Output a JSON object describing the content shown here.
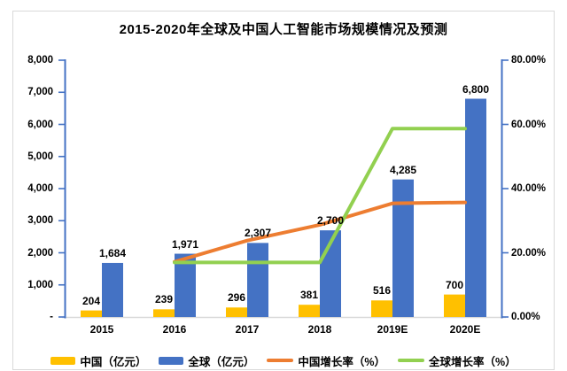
{
  "chart_data": {
    "type": "combo-bar-line",
    "title": "2015-2020年全球及中国人工智能市场规模情况及预测",
    "categories": [
      "2015",
      "2016",
      "2017",
      "2018",
      "2019E",
      "2020E"
    ],
    "series": [
      {
        "name": "中国（亿元）",
        "chart": "bar",
        "axis": "left",
        "color": "#FFC000",
        "values": [
          204,
          239,
          296,
          381,
          516,
          700
        ],
        "labels": [
          "204",
          "239",
          "296",
          "381",
          "516",
          "700"
        ]
      },
      {
        "name": "全球（亿元）",
        "chart": "bar",
        "axis": "left",
        "color": "#4472C4",
        "values": [
          1684,
          1971,
          2307,
          2700,
          4285,
          6800
        ],
        "labels": [
          "1,684",
          "1,971",
          "2,307",
          "2,700",
          "4,285",
          "6,800"
        ]
      },
      {
        "name": "中国增长率（%）",
        "chart": "line",
        "axis": "right",
        "color": "#ED7D31",
        "values": [
          null,
          17.2,
          23.8,
          28.7,
          35.4,
          35.7
        ]
      },
      {
        "name": "全球增长率（%）",
        "chart": "line",
        "axis": "right",
        "color": "#92D050",
        "values": [
          null,
          17.0,
          17.0,
          17.0,
          58.7,
          58.7
        ]
      }
    ],
    "left_axis": {
      "min": 0,
      "max": 8000,
      "step": 1000,
      "tick_labels": [
        "8,000",
        "7,000",
        "6,000",
        "5,000",
        "4,000",
        "3,000",
        "2,000",
        "1,000",
        "-"
      ]
    },
    "right_axis": {
      "min": 0,
      "max": 80,
      "step": 20,
      "tick_labels": [
        "80.00%",
        "60.00%",
        "40.00%",
        "20.00%",
        "0.00%"
      ]
    },
    "legend_position": "bottom",
    "grid": false,
    "colors": {
      "axis_line": "#4472C4",
      "category_axis_line": "#D9D9D9",
      "frame_border": "#D9D9D9",
      "text": "#000000",
      "background": "#FFFFFF"
    }
  }
}
